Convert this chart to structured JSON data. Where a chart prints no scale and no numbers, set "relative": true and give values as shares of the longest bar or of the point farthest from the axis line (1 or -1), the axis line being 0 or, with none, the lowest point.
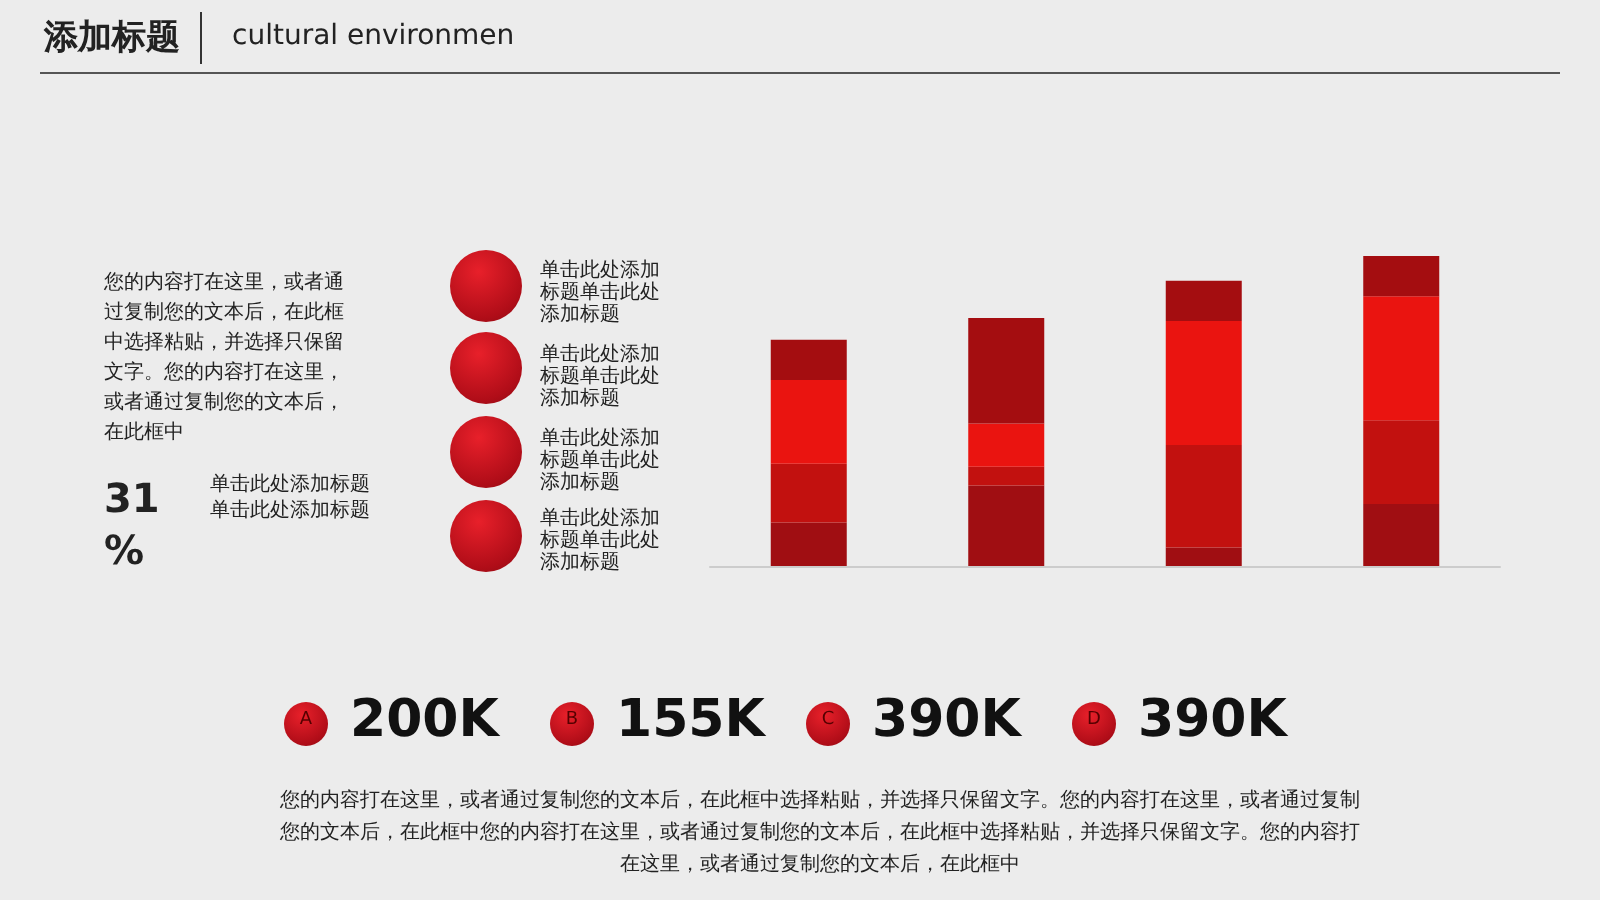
{
  "chart_data": {
    "type": "bar",
    "title": "添加标题",
    "subtitle": "cultural environmen",
    "categories": [
      null,
      null,
      null,
      null
    ],
    "stacked": true,
    "relative": true,
    "series": [
      {
        "color": "#a00e12",
        "values": [
          0.14,
          0.26,
          0.06,
          0.2
        ]
      },
      {
        "color": "#c2110f",
        "values": [
          0.19,
          0.06,
          0.33,
          0.27
        ]
      },
      {
        "color": "#ea1410",
        "values": [
          0.27,
          0.14,
          0.4,
          0.4
        ]
      },
      {
        "color": "#a40d10",
        "values": [
          0.13,
          0.34,
          0.13,
          0.13
        ]
      }
    ],
    "annotations": [
      "您的内容打在这里，或者通过复制您的文本后，在此框中选择粘贴，并选择只保留文字。您的内容打在这里，或者通过复制您的文本后，在此框中",
      "31 %",
      "单击此处添加标题单击此处添加标题",
      "单击此处添加标题单击此处添加标题",
      "单击此处添加标题单击此处添加标题",
      "单击此处添加标题单击此处添加标题",
      "单击此处添加标题单击此处添加标题",
      "A",
      "B",
      "C",
      "D",
      "200K",
      "155K",
      "390K",
      "390K",
      "您的内容打在这里，或者通过复制您的文本后，在此框中选择粘贴，并选择只保留文字。您的内容打在这里，或者通过复制您的文本后，在此框中您的内容打在这里，或者通过复制您的文本后，在此框中选择粘贴，并选择只保留文字。您的内容打在这里，或者通过复制您的文本后，在此框中"
    ]
  }
}
